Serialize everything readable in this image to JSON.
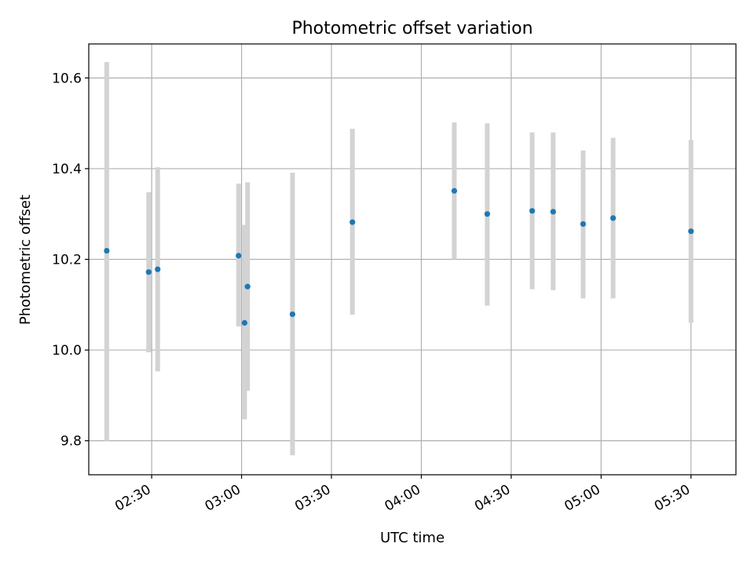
{
  "chart_data": {
    "type": "scatter",
    "title": "Photometric offset variation",
    "xlabel": "UTC time",
    "ylabel": "Photometric offset",
    "grid": true,
    "legend": "none",
    "xlim": [
      "02:09",
      "05:45"
    ],
    "ylim": [
      9.725,
      10.675
    ],
    "x_ticks": [
      "02:30",
      "03:00",
      "03:30",
      "04:00",
      "04:30",
      "05:00",
      "05:30"
    ],
    "y_ticks": [
      "9.8",
      "10.0",
      "10.2",
      "10.4",
      "10.6"
    ],
    "colors": {
      "point": "#1f77b4",
      "errorbar": "#d3d3d3",
      "grid": "#b0b0b0"
    },
    "series": [
      {
        "points": [
          {
            "x": "02:15",
            "y": 10.219,
            "ylo": 9.8,
            "yhi": 10.635
          },
          {
            "x": "02:29",
            "y": 10.172,
            "ylo": 9.995,
            "yhi": 10.348
          },
          {
            "x": "02:32",
            "y": 10.178,
            "ylo": 9.953,
            "yhi": 10.403
          },
          {
            "x": "02:59",
            "y": 10.208,
            "ylo": 10.052,
            "yhi": 10.367
          },
          {
            "x": "03:01",
            "y": 10.06,
            "ylo": 9.847,
            "yhi": 10.276
          },
          {
            "x": "03:02",
            "y": 10.14,
            "ylo": 9.91,
            "yhi": 10.37
          },
          {
            "x": "03:17",
            "y": 10.079,
            "ylo": 9.768,
            "yhi": 10.391
          },
          {
            "x": "03:37",
            "y": 10.282,
            "ylo": 10.078,
            "yhi": 10.488
          },
          {
            "x": "04:11",
            "y": 10.351,
            "ylo": 10.2,
            "yhi": 10.502
          },
          {
            "x": "04:22",
            "y": 10.3,
            "ylo": 10.098,
            "yhi": 10.5
          },
          {
            "x": "04:37",
            "y": 10.307,
            "ylo": 10.134,
            "yhi": 10.48
          },
          {
            "x": "04:44",
            "y": 10.305,
            "ylo": 10.132,
            "yhi": 10.48
          },
          {
            "x": "04:54",
            "y": 10.278,
            "ylo": 10.114,
            "yhi": 10.44
          },
          {
            "x": "05:04",
            "y": 10.291,
            "ylo": 10.114,
            "yhi": 10.468
          },
          {
            "x": "05:30",
            "y": 10.262,
            "ylo": 10.06,
            "yhi": 10.463
          }
        ]
      }
    ]
  }
}
